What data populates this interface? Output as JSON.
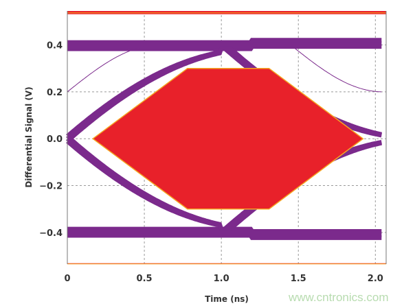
{
  "chart_data": {
    "type": "line",
    "subtype": "eye-diagram",
    "title": "",
    "xlabel": "Time (ns)",
    "ylabel": "Differential Signal (V)",
    "xlim": [
      0,
      2.07
    ],
    "ylim": [
      -0.535,
      0.545
    ],
    "xticks": [
      0,
      0.5,
      1.0,
      1.5,
      2.0
    ],
    "xtick_labels": [
      "0",
      "0.5",
      "1.0",
      "1.5",
      "2.0"
    ],
    "yticks": [
      0.4,
      0.2,
      0.0,
      -0.2,
      -0.4
    ],
    "ytick_labels": [
      "0.4",
      "0.2",
      "0.0",
      "−0.2",
      "−0.4"
    ],
    "grid": true,
    "grid_style": "dashed",
    "eye": {
      "high_level": 0.4,
      "low_level": -0.4,
      "crossings": [
        0,
        2.04
      ],
      "trace_color": "#7b2a8c"
    },
    "mask": {
      "color": "#e8212a",
      "outline_color": "#f5a623",
      "polygon": [
        [
          0.166,
          0
        ],
        [
          0.78,
          0.3
        ],
        [
          1.31,
          0.3
        ],
        [
          1.92,
          0
        ],
        [
          1.31,
          -0.3
        ],
        [
          0.78,
          -0.3
        ]
      ],
      "upper_limit": 0.54,
      "lower_limit": -0.54
    }
  },
  "watermark": "www.cntronics.com"
}
